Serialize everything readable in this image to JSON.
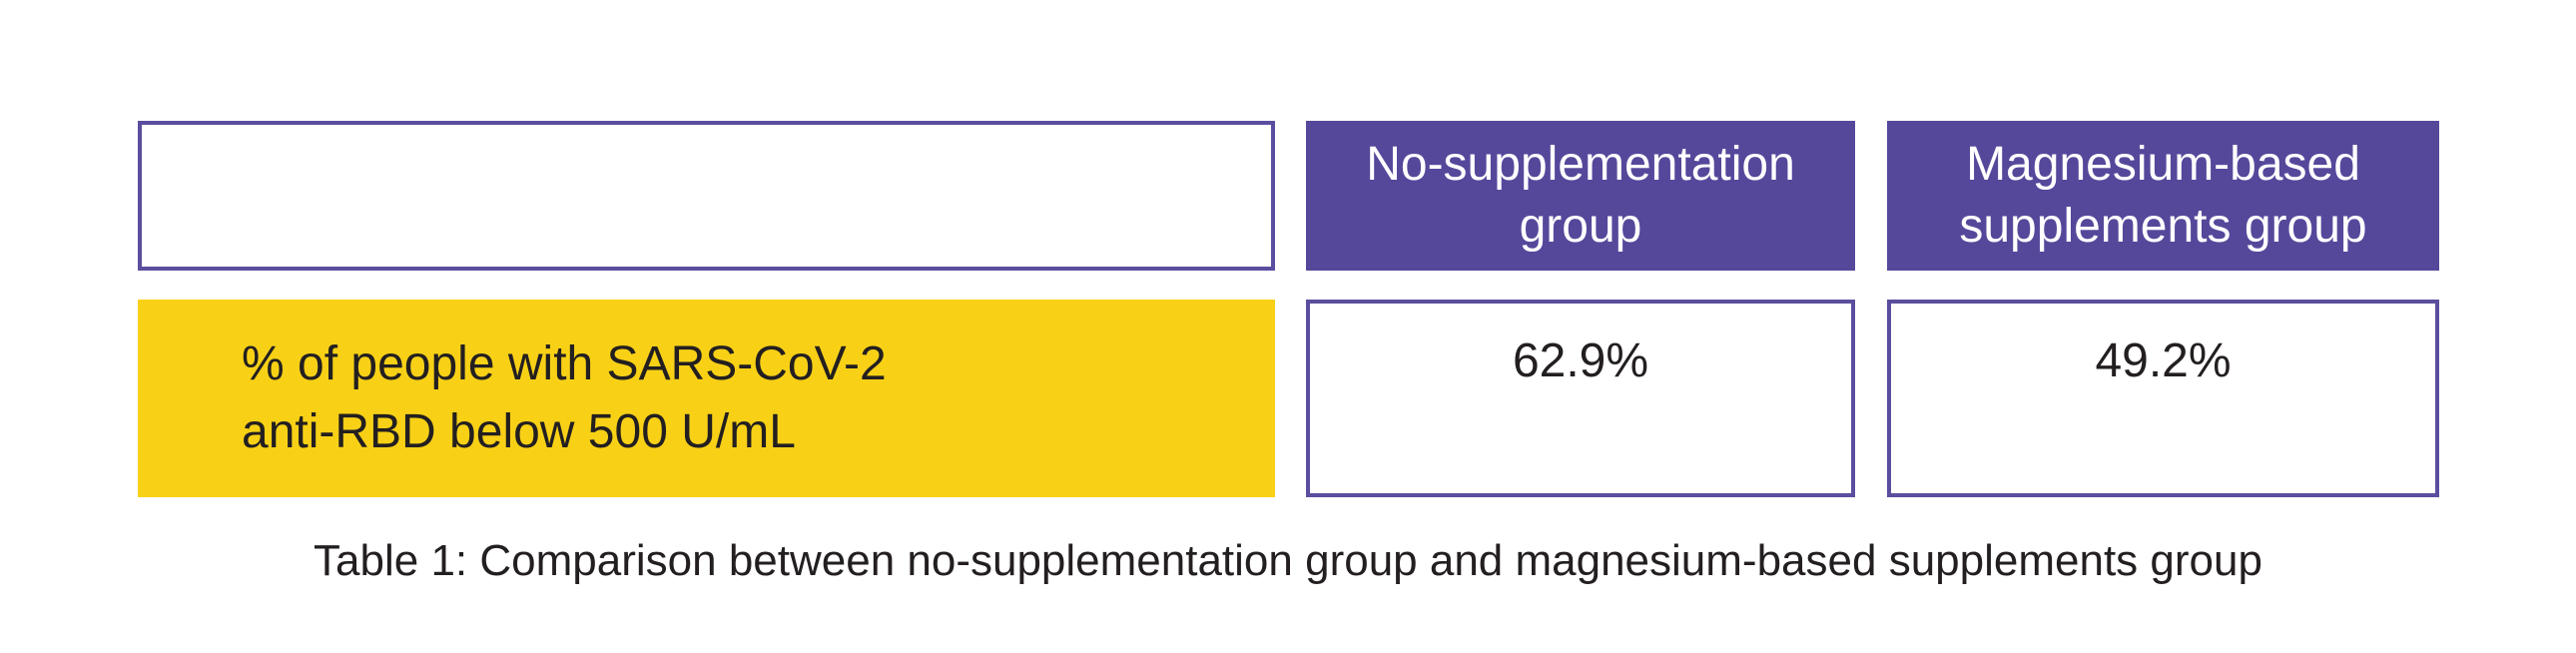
{
  "chart_data": {
    "type": "table",
    "caption": "Table 1: Comparison between no-supplementation group and magnesium-based supplements group",
    "columns": [
      "",
      "No-supplementation group",
      "Magnesium-based supplements group"
    ],
    "rows": [
      {
        "label": "% of people with SARS-CoV-2 anti-RBD below 500 U/mL",
        "label_lines": [
          "% of people with SARS-CoV-2",
          "anti-RBD below 500 U/mL"
        ],
        "values": [
          "62.9%",
          "49.2%"
        ]
      }
    ],
    "layout": {
      "header_position": "top",
      "row_label_position": "left",
      "grid": "separated-cells"
    }
  },
  "colors": {
    "header_fill": "#55489B",
    "cell_border": "#5A4E9E",
    "row_label_fill": "#F8D116",
    "header_text": "#FFFFFF",
    "body_text": "#231F20",
    "background": "#FFFFFF"
  }
}
